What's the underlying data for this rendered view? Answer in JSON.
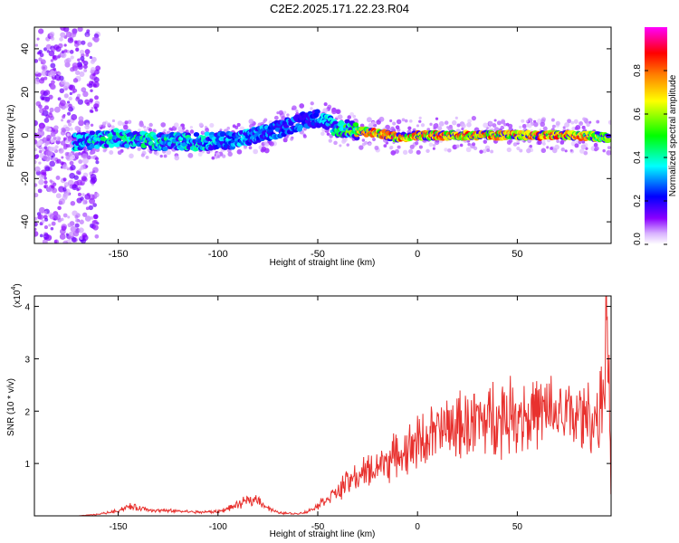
{
  "title": "C2E2.2025.171.22.23.R04",
  "colors": {
    "snr_line": "#e8312e",
    "axis": "#000000",
    "background": "#ffffff"
  },
  "chart_data": [
    {
      "type": "heatmap",
      "title": "C2E2.2025.171.22.23.R04",
      "xlabel": "Height of straight line (km)",
      "ylabel": "Frequency (Hz)",
      "xlim": [
        -192,
        97
      ],
      "ylim": [
        -50,
        50
      ],
      "xticks": [
        -150,
        -100,
        -50,
        0,
        50
      ],
      "yticks": [
        -40,
        -20,
        0,
        20,
        40
      ],
      "colorbar": {
        "label": "Normalized spectral amplitude",
        "range": [
          0.0,
          1.0
        ],
        "ticks": [
          0.0,
          0.2,
          0.4,
          0.6,
          0.8
        ],
        "colormap": [
          "#ffffff",
          "#d9b3ff",
          "#8a00ff",
          "#0000ff",
          "#00ffff",
          "#00ff00",
          "#ffff00",
          "#ff8000",
          "#ff0000",
          "#ff00ff"
        ]
      },
      "ridge": {
        "x": [
          -170,
          -150,
          -130,
          -110,
          -90,
          -75,
          -60,
          -50,
          -45,
          -40,
          -35,
          -30,
          -20,
          -10,
          0,
          20,
          40,
          60,
          80,
          95
        ],
        "frequency": [
          -3,
          -1,
          -3,
          -3,
          -2,
          1,
          6,
          8,
          6,
          3,
          3,
          2,
          1,
          -1,
          0,
          0,
          0,
          0,
          0,
          -1
        ],
        "amplitude": [
          0.4,
          0.45,
          0.45,
          0.4,
          0.35,
          0.35,
          0.3,
          0.3,
          0.4,
          0.45,
          0.55,
          0.75,
          0.85,
          0.9,
          0.85,
          0.85,
          0.85,
          0.9,
          0.85,
          0.6
        ]
      }
    },
    {
      "type": "line",
      "xlabel": "Height of straight line (km)",
      "ylabel": "SNR (10 * v/v)",
      "yscale_label": "(x10",
      "yscale_exp": "4",
      "xlim": [
        -192,
        97
      ],
      "ylim": [
        0,
        42000
      ],
      "xticks": [
        -150,
        -100,
        -50,
        0,
        50
      ],
      "yticks": [
        10000,
        20000,
        30000,
        40000
      ],
      "ytick_labels": [
        "1",
        "2",
        "3",
        "4"
      ],
      "series": [
        {
          "color": "#e8312e",
          "x": [
            -192,
            -180,
            -170,
            -160,
            -150,
            -145,
            -140,
            -135,
            -130,
            -120,
            -110,
            -100,
            -90,
            -85,
            -80,
            -75,
            -70,
            -60,
            -55,
            -50,
            -45,
            -40,
            -35,
            -30,
            -25,
            -20,
            -15,
            -10,
            -5,
            0,
            10,
            20,
            30,
            40,
            50,
            60,
            70,
            80,
            85,
            90,
            92,
            94,
            95,
            96,
            97
          ],
          "y": [
            0,
            0,
            0,
            300,
            1000,
            1800,
            1500,
            1200,
            1000,
            900,
            700,
            800,
            2000,
            3000,
            3200,
            1500,
            600,
            400,
            800,
            2000,
            3500,
            4500,
            6500,
            7500,
            8500,
            9500,
            10500,
            11500,
            12500,
            14000,
            16000,
            17000,
            18000,
            19000,
            19500,
            19500,
            19500,
            19000,
            19000,
            18500,
            20000,
            30000,
            40000,
            25000,
            3000
          ]
        }
      ]
    }
  ]
}
